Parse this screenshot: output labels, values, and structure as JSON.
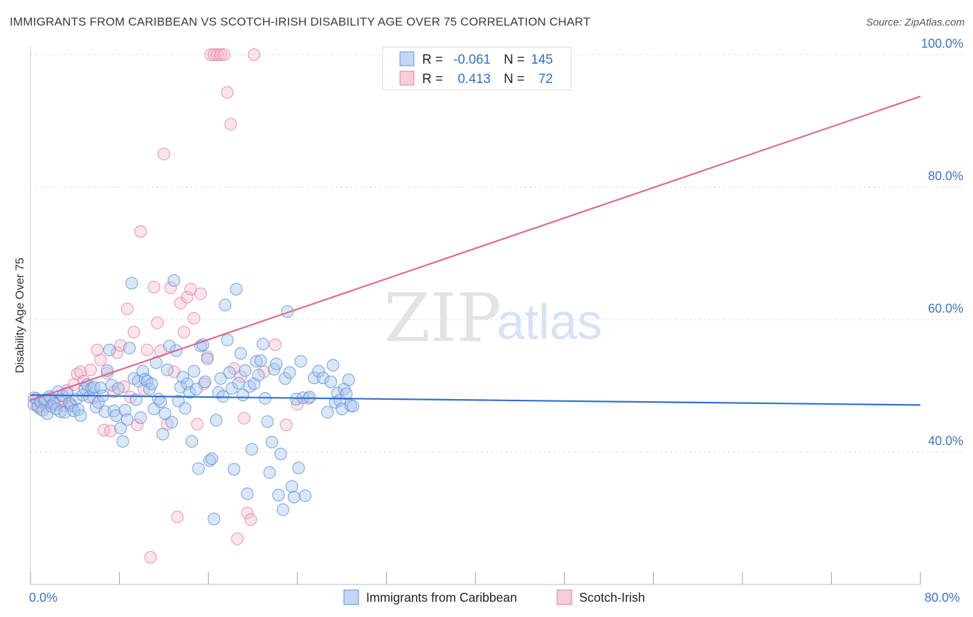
{
  "title": "IMMIGRANTS FROM CARIBBEAN VS SCOTCH-IRISH DISABILITY AGE OVER 75 CORRELATION CHART",
  "source": "Source: ZipAtlas.com",
  "watermark": {
    "zip": "ZIP",
    "atlas": "atlas"
  },
  "colors": {
    "blue": "#a8c6f0",
    "blue_stroke": "#5b8fd6",
    "blue_line": "#2e6fd0",
    "pink": "#f4b8cb",
    "pink_stroke": "#e07a9c",
    "pink_line": "#e0688f",
    "axis_text": "#3b74c8"
  },
  "legend": {
    "r_label": "R =",
    "n_label": "N =",
    "series": [
      {
        "r": "-0.061",
        "n": "145"
      },
      {
        "r": "0.413",
        "n": "72"
      }
    ]
  },
  "bottom_legend": [
    "Immigrants from Caribbean",
    "Scotch-Irish"
  ],
  "chart_data": {
    "type": "scatter",
    "xlabel": "",
    "ylabel": "Disability Age Over 75",
    "xlim": [
      0,
      80
    ],
    "ylim": [
      20,
      105
    ],
    "x_tick_labels": {
      "min": "0.0%",
      "max": "80.0%"
    },
    "y_ticks": [
      {
        "value": 40,
        "label": "40.0%"
      },
      {
        "value": 60,
        "label": "60.0%"
      },
      {
        "value": 80,
        "label": "80.0%"
      },
      {
        "value": 100,
        "label": "100.0%"
      }
    ],
    "series": [
      {
        "name": "Immigrants from Caribbean",
        "r": -0.061,
        "n": 145,
        "trend": {
          "x": [
            0,
            80
          ],
          "y": [
            48.6,
            47.1
          ]
        },
        "points": [
          [
            0.3,
            47.2
          ],
          [
            0.5,
            48.1
          ],
          [
            0.7,
            46.8
          ],
          [
            0.9,
            47.6
          ],
          [
            1.1,
            46.3
          ],
          [
            1.3,
            47.9
          ],
          [
            1.5,
            45.8
          ],
          [
            1.7,
            48.4
          ],
          [
            1.9,
            46.9
          ],
          [
            2.1,
            47.3
          ],
          [
            2.3,
            46.5
          ],
          [
            2.5,
            49.1
          ],
          [
            2.7,
            46.1
          ],
          [
            2.9,
            48.5
          ],
          [
            3.1,
            46.0
          ],
          [
            3.3,
            48.9
          ],
          [
            3.5,
            47.4
          ],
          [
            3.7,
            47.0
          ],
          [
            3.9,
            46.2
          ],
          [
            4.1,
            48.0
          ],
          [
            4.3,
            46.4
          ],
          [
            4.5,
            45.5
          ],
          [
            4.7,
            48.6
          ],
          [
            4.9,
            49.5
          ],
          [
            5.1,
            50.2
          ],
          [
            5.3,
            48.3
          ],
          [
            5.5,
            49.6
          ],
          [
            5.7,
            49.8
          ],
          [
            5.9,
            46.8
          ],
          [
            6.1,
            47.5
          ],
          [
            6.3,
            49.7
          ],
          [
            6.5,
            48.5
          ],
          [
            6.7,
            46.1
          ],
          [
            6.9,
            52.3
          ],
          [
            7.1,
            55.4
          ],
          [
            7.3,
            50.1
          ],
          [
            7.5,
            46.2
          ],
          [
            7.7,
            45.5
          ],
          [
            7.9,
            49.6
          ],
          [
            8.1,
            43.6
          ],
          [
            8.3,
            41.6
          ],
          [
            8.5,
            46.3
          ],
          [
            8.7,
            44.9
          ],
          [
            8.9,
            55.7
          ],
          [
            9.1,
            65.5
          ],
          [
            9.3,
            51.1
          ],
          [
            9.5,
            47.9
          ],
          [
            9.7,
            50.7
          ],
          [
            9.9,
            45.2
          ],
          [
            10.1,
            52.2
          ],
          [
            10.3,
            51.0
          ],
          [
            10.5,
            50.7
          ],
          [
            10.7,
            49.5
          ],
          [
            10.9,
            50.3
          ],
          [
            11.1,
            46.5
          ],
          [
            11.3,
            53.5
          ],
          [
            11.5,
            48.0
          ],
          [
            11.7,
            47.6
          ],
          [
            11.9,
            42.7
          ],
          [
            12.1,
            45.8
          ],
          [
            12.3,
            52.4
          ],
          [
            12.5,
            56.0
          ],
          [
            12.7,
            44.5
          ],
          [
            12.9,
            65.9
          ],
          [
            13.1,
            55.3
          ],
          [
            13.3,
            47.7
          ],
          [
            13.5,
            49.8
          ],
          [
            13.7,
            51.3
          ],
          [
            13.9,
            46.6
          ],
          [
            14.1,
            50.3
          ],
          [
            14.3,
            49.0
          ],
          [
            14.5,
            41.6
          ],
          [
            14.7,
            52.2
          ],
          [
            14.9,
            49.5
          ],
          [
            15.1,
            37.5
          ],
          [
            15.3,
            56.0
          ],
          [
            15.5,
            56.2
          ],
          [
            15.7,
            50.6
          ],
          [
            15.9,
            54.1
          ],
          [
            16.1,
            38.7
          ],
          [
            16.3,
            39.0
          ],
          [
            16.5,
            29.9
          ],
          [
            16.7,
            44.8
          ],
          [
            16.9,
            49.0
          ],
          [
            17.1,
            51.1
          ],
          [
            17.3,
            48.4
          ],
          [
            17.5,
            62.2
          ],
          [
            17.7,
            56.9
          ],
          [
            17.9,
            52.0
          ],
          [
            18.1,
            49.6
          ],
          [
            18.3,
            37.4
          ],
          [
            18.5,
            64.6
          ],
          [
            18.7,
            50.4
          ],
          [
            18.9,
            54.9
          ],
          [
            19.1,
            48.6
          ],
          [
            19.3,
            52.3
          ],
          [
            19.5,
            33.7
          ],
          [
            19.7,
            49.9
          ],
          [
            19.9,
            40.4
          ],
          [
            20.1,
            50.3
          ],
          [
            20.3,
            53.7
          ],
          [
            20.5,
            51.6
          ],
          [
            20.7,
            53.8
          ],
          [
            20.9,
            56.3
          ],
          [
            21.1,
            48.1
          ],
          [
            21.3,
            44.6
          ],
          [
            21.5,
            36.9
          ],
          [
            21.7,
            41.5
          ],
          [
            21.9,
            52.5
          ],
          [
            22.1,
            53.3
          ],
          [
            22.3,
            33.5
          ],
          [
            22.5,
            39.7
          ],
          [
            22.7,
            31.3
          ],
          [
            22.9,
            51.1
          ],
          [
            23.1,
            61.2
          ],
          [
            23.3,
            52.0
          ],
          [
            23.5,
            34.8
          ],
          [
            23.7,
            33.2
          ],
          [
            23.9,
            48.0
          ],
          [
            24.1,
            37.6
          ],
          [
            24.3,
            53.7
          ],
          [
            24.5,
            48.2
          ],
          [
            24.7,
            33.4
          ],
          [
            25.1,
            48.3
          ],
          [
            25.5,
            51.2
          ],
          [
            25.9,
            52.2
          ],
          [
            26.3,
            51.2
          ],
          [
            26.7,
            46.0
          ],
          [
            27.0,
            50.6
          ],
          [
            27.2,
            53.1
          ],
          [
            27.4,
            47.5
          ],
          [
            27.6,
            48.9
          ],
          [
            27.8,
            47.8
          ],
          [
            28.0,
            46.5
          ],
          [
            28.2,
            49.5
          ],
          [
            28.4,
            48.8
          ],
          [
            28.6,
            50.9
          ],
          [
            28.8,
            47.0
          ],
          [
            29.0,
            46.9
          ]
        ]
      },
      {
        "name": "Scotch-Irish",
        "r": 0.413,
        "n": 72,
        "trend": {
          "x": [
            0,
            80
          ],
          "y": [
            47.8,
            93.7
          ]
        },
        "points": [
          [
            0.3,
            48.2
          ],
          [
            0.6,
            47.0
          ],
          [
            0.9,
            46.5
          ],
          [
            1.2,
            47.7
          ],
          [
            1.5,
            46.9
          ],
          [
            1.8,
            48.2
          ],
          [
            2.1,
            47.6
          ],
          [
            2.4,
            47.2
          ],
          [
            2.7,
            48.0
          ],
          [
            3.0,
            47.0
          ],
          [
            3.3,
            49.3
          ],
          [
            3.6,
            47.3
          ],
          [
            3.9,
            50.2
          ],
          [
            4.2,
            51.8
          ],
          [
            4.5,
            52.1
          ],
          [
            4.8,
            50.7
          ],
          [
            5.1,
            49.2
          ],
          [
            5.4,
            52.4
          ],
          [
            5.7,
            48.2
          ],
          [
            6.0,
            55.4
          ],
          [
            6.3,
            53.9
          ],
          [
            6.6,
            43.3
          ],
          [
            6.9,
            51.9
          ],
          [
            7.2,
            43.2
          ],
          [
            7.5,
            49.1
          ],
          [
            7.8,
            55.0
          ],
          [
            8.1,
            56.1
          ],
          [
            8.4,
            49.9
          ],
          [
            8.7,
            61.6
          ],
          [
            9.0,
            48.3
          ],
          [
            9.3,
            58.1
          ],
          [
            9.6,
            44.1
          ],
          [
            9.9,
            73.3
          ],
          [
            10.2,
            49.5
          ],
          [
            10.5,
            55.4
          ],
          [
            10.8,
            24.1
          ],
          [
            11.1,
            64.9
          ],
          [
            11.4,
            59.5
          ],
          [
            11.7,
            55.3
          ],
          [
            12.0,
            85.0
          ],
          [
            12.3,
            44.2
          ],
          [
            12.6,
            64.8
          ],
          [
            12.9,
            52.1
          ],
          [
            13.2,
            30.2
          ],
          [
            13.5,
            62.5
          ],
          [
            13.8,
            58.1
          ],
          [
            14.1,
            63.4
          ],
          [
            14.4,
            64.6
          ],
          [
            14.7,
            60.2
          ],
          [
            15.0,
            44.2
          ],
          [
            15.3,
            63.9
          ],
          [
            15.6,
            50.3
          ],
          [
            15.9,
            54.4
          ],
          [
            16.2,
            100.0
          ],
          [
            16.5,
            100.0
          ],
          [
            16.8,
            100.0
          ],
          [
            17.1,
            100.0
          ],
          [
            17.4,
            100.0
          ],
          [
            17.7,
            94.3
          ],
          [
            18.0,
            89.5
          ],
          [
            18.3,
            52.6
          ],
          [
            18.6,
            26.9
          ],
          [
            18.9,
            51.4
          ],
          [
            19.2,
            45.1
          ],
          [
            19.5,
            30.8
          ],
          [
            19.8,
            29.8
          ],
          [
            20.1,
            100.0
          ],
          [
            21.0,
            52.1
          ],
          [
            22.0,
            56.2
          ],
          [
            23.0,
            44.1
          ],
          [
            24.0,
            47.2
          ],
          [
            25.0,
            48.1
          ]
        ]
      }
    ]
  }
}
